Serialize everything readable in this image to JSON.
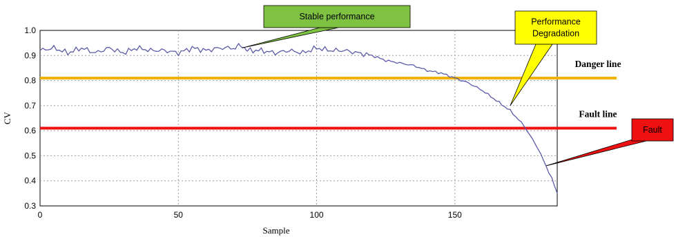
{
  "chart_data": {
    "type": "line",
    "xlabel": "Sample",
    "ylabel": "CV",
    "xlim": [
      0,
      187
    ],
    "ylim": [
      0.3,
      1.0
    ],
    "xticks": [
      "0",
      "50",
      "100",
      "150"
    ],
    "yticks": [
      "0.3",
      "0.4",
      "0.5",
      "0.6",
      "0.7",
      "0.8",
      "0.9",
      "1.0"
    ],
    "grid": true,
    "series_color": "#5a5aa8",
    "series": [
      {
        "x": [
          0,
          5,
          10,
          15,
          20,
          25,
          30,
          35,
          40,
          45,
          50,
          55,
          60,
          65,
          70,
          73,
          75,
          80,
          85,
          90,
          95,
          100,
          105,
          110,
          115,
          120,
          125,
          130,
          135,
          140,
          145,
          150,
          155,
          160,
          165,
          170,
          175,
          180,
          185,
          187
        ],
        "y": [
          0.92,
          0.93,
          0.91,
          0.93,
          0.91,
          0.93,
          0.91,
          0.93,
          0.92,
          0.92,
          0.91,
          0.93,
          0.92,
          0.93,
          0.93,
          0.94,
          0.92,
          0.92,
          0.91,
          0.92,
          0.91,
          0.93,
          0.92,
          0.92,
          0.91,
          0.9,
          0.88,
          0.87,
          0.86,
          0.84,
          0.83,
          0.81,
          0.79,
          0.76,
          0.72,
          0.68,
          0.62,
          0.53,
          0.41,
          0.35
        ]
      }
    ],
    "reference_lines": [
      {
        "label": "Danger line",
        "y": 0.81,
        "color": "#f2b300"
      },
      {
        "label": "Fault line",
        "y": 0.61,
        "color": "#ee1111"
      }
    ],
    "annotations": [
      {
        "text": "Stable performance",
        "box_color": "#7fc242",
        "pointer_x": 73,
        "pointer_y": 0.93
      },
      {
        "text_lines": [
          "Performance",
          "Degradation"
        ],
        "box_color": "#ffff00",
        "pointer_x": 170,
        "pointer_y": 0.7
      },
      {
        "text": "Fault",
        "box_color": "#ee1111",
        "pointer_x": 183,
        "pointer_y": 0.46
      }
    ]
  }
}
